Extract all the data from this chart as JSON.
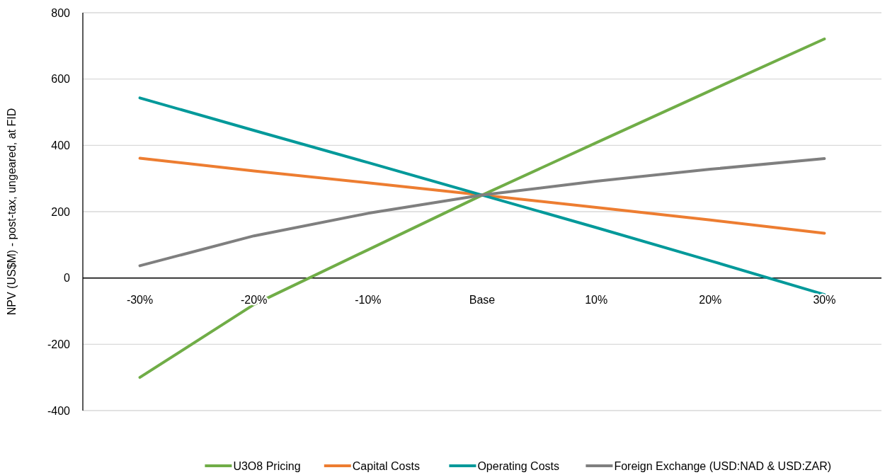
{
  "chart_data": {
    "type": "line",
    "ylabel": "NPV (US$M) - post-tax, ungeared, at FID",
    "categories": [
      "-30%",
      "-20%",
      "-10%",
      "Base",
      "10%",
      "20%",
      "30%"
    ],
    "series": [
      {
        "name": "U3O8 Pricing",
        "color": "#70ad47",
        "values": [
          -300,
          -80,
          85,
          250,
          408,
          565,
          721
        ]
      },
      {
        "name": "Capital Costs",
        "color": "#ed7d31",
        "values": [
          361,
          323,
          287,
          250,
          213,
          175,
          135
        ]
      },
      {
        "name": "Operating Costs",
        "color": "#00999a",
        "values": [
          543,
          445,
          348,
          250,
          152,
          52,
          -50
        ]
      },
      {
        "name": "Foreign Exchange (USD:NAD & USD:ZAR)",
        "color": "#7f7f7f",
        "values": [
          37,
          127,
          195,
          250,
          292,
          328,
          360
        ]
      }
    ],
    "ylim": [
      -400,
      800
    ],
    "yticks": [
      -400,
      -200,
      0,
      200,
      400,
      600,
      800
    ],
    "grid": "y",
    "legend": "bottom",
    "marker": "none",
    "line_style": "solid"
  }
}
